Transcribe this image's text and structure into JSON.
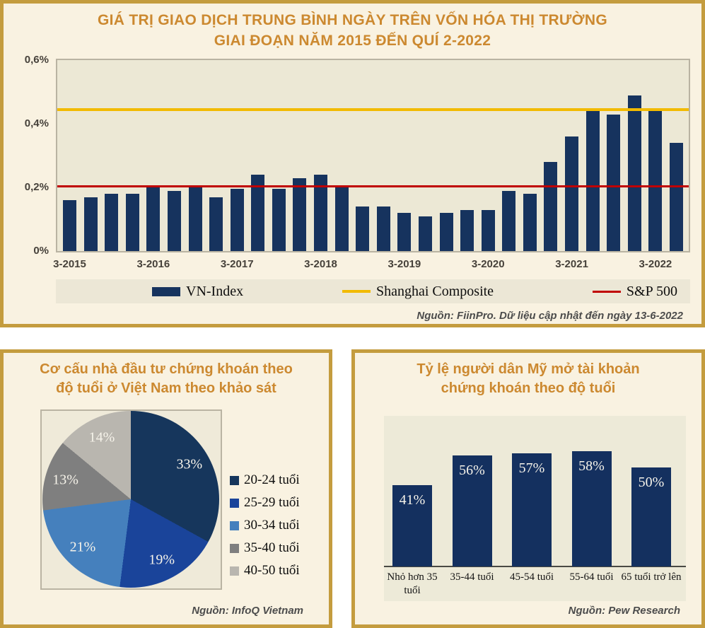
{
  "panel1": {
    "title_line1": "GIÁ TRỊ GIAO DỊCH TRUNG BÌNH NGÀY TRÊN VỐN HÓA THỊ TRƯỜNG",
    "title_line2": "GIAI ĐOẠN NĂM 2015 ĐẾN QUÍ 2-2022",
    "source": "Nguồn: FiinPro. Dữ liệu cập nhật đến ngày 13-6-2022"
  },
  "panel2": {
    "title_line1": "Cơ cấu nhà đầu tư chứng khoán theo",
    "title_line2": "độ tuổi ở Việt Nam theo khảo sát",
    "source": "Nguồn: InfoQ Vietnam"
  },
  "panel3": {
    "title_line1": "Tỷ lệ người dân Mỹ mở tài khoản",
    "title_line2": "chứng khoán theo độ tuổi",
    "source": "Nguồn: Pew Research"
  },
  "colors": {
    "panel_bg": "#f9f2e1",
    "panel_border": "#c49c3e",
    "plot_bg": "#ece8d5",
    "title_gold": "#cc8930",
    "navy": "#16335e",
    "shanghai_yellow": "#f2ba00",
    "sp500_red": "#c00000"
  },
  "chart_data": [
    {
      "type": "bar",
      "title": "GIÁ TRỊ GIAO DỊCH TRUNG BÌNH NGÀY TRÊN VỐN HÓA THỊ TRƯỜNG GIAI ĐOẠN NĂM 2015 ĐẾN QUÍ 2-2022",
      "x_tick_labels": [
        "3-2015",
        "3-2016",
        "3-2017",
        "3-2018",
        "3-2019",
        "3-2020",
        "3-2021",
        "3-2022"
      ],
      "x_note": "quarterly bars from Q1-2015 to Q2-2022, labels mark every 4th bar",
      "y_ticks": [
        0,
        0.2,
        0.4,
        0.6
      ],
      "y_tick_labels": [
        "0%",
        "0,2%",
        "0,4%",
        "0,6%"
      ],
      "ylim": [
        0,
        0.6
      ],
      "grid": false,
      "legend_position": "bottom",
      "series": [
        {
          "name": "VN-Index",
          "type": "bar",
          "color": "#16335e",
          "values": [
            0.16,
            0.17,
            0.18,
            0.18,
            0.205,
            0.19,
            0.205,
            0.17,
            0.195,
            0.24,
            0.195,
            0.23,
            0.24,
            0.205,
            0.14,
            0.14,
            0.12,
            0.11,
            0.12,
            0.13,
            0.13,
            0.19,
            0.18,
            0.28,
            0.36,
            0.44,
            0.43,
            0.49,
            0.44,
            0.34
          ]
        },
        {
          "name": "Shanghai Composite",
          "type": "hline",
          "color": "#f2ba00",
          "value": 0.445
        },
        {
          "name": "S&P 500",
          "type": "hline",
          "color": "#c00000",
          "value": 0.205
        }
      ],
      "source": "Nguồn: FiinPro. Dữ liệu cập nhật đến ngày 13-6-2022"
    },
    {
      "type": "pie",
      "title": "Cơ cấu nhà đầu tư chứng khoán theo độ tuổi ở Việt Nam theo khảo sát",
      "labels": [
        "20-24 tuổi",
        "25-29 tuổi",
        "30-34 tuổi",
        "35-40 tuổi",
        "40-50 tuổi"
      ],
      "values": [
        33,
        19,
        21,
        13,
        14
      ],
      "data_labels": [
        "33%",
        "19%",
        "21%",
        "13%",
        "14%"
      ],
      "colors": [
        "#16365c",
        "#1a449a",
        "#4580bd",
        "#7f7f7f",
        "#b9b6af"
      ],
      "legend_position": "right",
      "source": "Nguồn: InfoQ Vietnam"
    },
    {
      "type": "bar",
      "title": "Tỷ lệ người dân Mỹ mở tài khoản chứng khoán theo độ tuổi",
      "categories": [
        "Nhỏ hơn 35 tuổi",
        "35-44 tuổi",
        "45-54 tuổi",
        "55-64 tuổi",
        "65 tuổi trở lên"
      ],
      "values": [
        41,
        56,
        57,
        58,
        50
      ],
      "data_labels": [
        "41%",
        "56%",
        "57%",
        "58%",
        "50%"
      ],
      "bar_color": "#14305f",
      "ylim": [
        0,
        75
      ],
      "grid": false,
      "source": "Nguồn: Pew Research"
    }
  ]
}
